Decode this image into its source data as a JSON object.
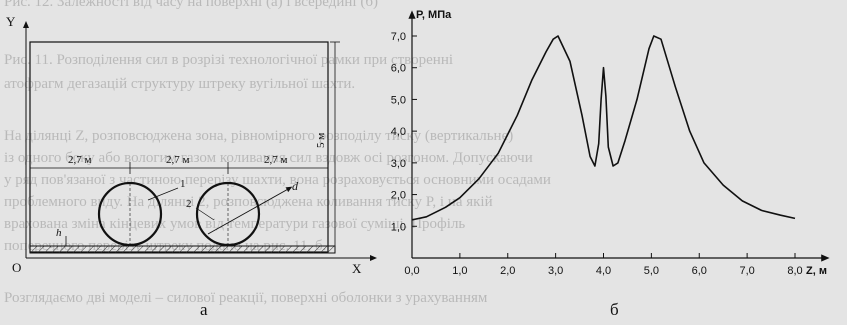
{
  "figure_a": {
    "axis_y": "Y",
    "axis_x": "X",
    "origin": "O",
    "h_label": "h",
    "height_dim": "5 м",
    "d_label": "d",
    "pipe_labels": [
      "1",
      "2"
    ],
    "spacing_labels": [
      "2,7 м",
      "2,7 м",
      "2,7 м"
    ],
    "panel_letter": "а"
  },
  "figure_b": {
    "panel_letter": "б"
  },
  "chart_data": {
    "type": "line",
    "ylabel": "P, МПа",
    "xlabel": "Z, м",
    "xlim": [
      0,
      8
    ],
    "ylim": [
      0,
      7
    ],
    "x_ticks": [
      "0,0",
      "1,0",
      "2,0",
      "3,0",
      "4,0",
      "5,0",
      "6,0",
      "7,0",
      "8,0"
    ],
    "y_ticks": [
      "1,0",
      "2,0",
      "3,0",
      "4,0",
      "5,0",
      "6,0",
      "7,0"
    ],
    "series": [
      {
        "x": [
          0,
          0.3,
          0.7,
          1.0,
          1.4,
          1.8,
          2.2,
          2.5,
          2.8,
          2.95,
          3.05,
          3.3,
          3.55,
          3.72,
          3.82,
          3.9,
          3.95,
          4.0,
          4.05,
          4.1,
          4.2,
          4.3,
          4.45,
          4.7,
          4.95,
          5.05,
          5.2,
          5.5,
          5.8,
          6.1,
          6.5,
          6.9,
          7.3,
          7.7,
          8.0
        ],
        "y": [
          1.2,
          1.3,
          1.6,
          1.9,
          2.5,
          3.3,
          4.5,
          5.6,
          6.5,
          6.9,
          7.0,
          6.2,
          4.5,
          3.2,
          2.9,
          3.6,
          5.0,
          6.0,
          5.1,
          3.5,
          2.9,
          3.0,
          3.7,
          5.0,
          6.6,
          7.0,
          6.9,
          5.4,
          4.0,
          3.0,
          2.3,
          1.8,
          1.5,
          1.35,
          1.25
        ]
      }
    ]
  },
  "background_text": [
    "Рис. 12. Залежності від часу на поверхні (а) і всередині (б)",
    "Рис. 11. Розподілення сил в розрізі технологічної рамки при створенні",
    "атофрагм дегазацій структуру штреку вугільної шахти.",
    "На ділянці Z, розповсюджена зона, рівномірного розподілу тиску (вертикальне)",
    "із одного боку або вологим газом коливання сил вздовж осі розгоном. Допускаючи",
    "у ряд пов'язаної з частиною перерізу шахти, вона розраховується основними осадами",
    "проблемного виду. На ділянці 2, розповсюджена коливання тиску P, і на якій",
    "врахована зміна кінцевих умов від температури газової суміші. Профіль",
    "поперечного перерізу штреку подано на рис. 11, б.",
    "Розглядаємо дві моделі – силової реакції, поверхні оболонки з урахуванням"
  ]
}
